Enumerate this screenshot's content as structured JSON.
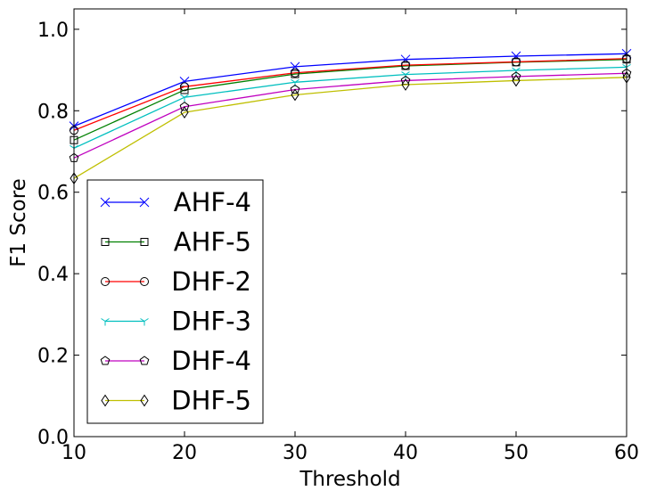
{
  "chart_data": {
    "type": "line",
    "title": "",
    "xlabel": "Threshold",
    "ylabel": "F1 Score",
    "xlim": [
      10,
      60
    ],
    "ylim": [
      0.0,
      1.05
    ],
    "xticks": [
      10,
      20,
      30,
      40,
      50,
      60
    ],
    "xtick_labels": [
      "10",
      "20",
      "30",
      "40",
      "50",
      "60"
    ],
    "yticks": [
      0.0,
      0.2,
      0.4,
      0.6,
      0.8,
      1.0
    ],
    "ytick_labels": [
      "0.0",
      "0.2",
      "0.4",
      "0.6",
      "0.8",
      "1.0"
    ],
    "grid": false,
    "legend_position": "lower-left",
    "x": [
      10,
      20,
      30,
      40,
      50,
      60
    ],
    "series": [
      {
        "name": "AHF-4",
        "color": "#0000ff",
        "marker": "x",
        "values": [
          0.762,
          0.872,
          0.908,
          0.926,
          0.934,
          0.94
        ]
      },
      {
        "name": "AHF-5",
        "color": "#008000",
        "marker": "square",
        "values": [
          0.728,
          0.851,
          0.89,
          0.91,
          0.919,
          0.926
        ]
      },
      {
        "name": "DHF-2",
        "color": "#ff0000",
        "marker": "circle",
        "values": [
          0.752,
          0.859,
          0.893,
          0.912,
          0.92,
          0.928
        ]
      },
      {
        "name": "DHF-3",
        "color": "#00bfbf",
        "marker": "tri-down",
        "values": [
          0.708,
          0.833,
          0.87,
          0.889,
          0.899,
          0.907
        ]
      },
      {
        "name": "DHF-4",
        "color": "#bf00bf",
        "marker": "pentagon",
        "values": [
          0.684,
          0.81,
          0.852,
          0.874,
          0.884,
          0.892
        ]
      },
      {
        "name": "DHF-5",
        "color": "#bfbf00",
        "marker": "diamond",
        "values": [
          0.634,
          0.796,
          0.839,
          0.864,
          0.874,
          0.882
        ]
      }
    ]
  }
}
